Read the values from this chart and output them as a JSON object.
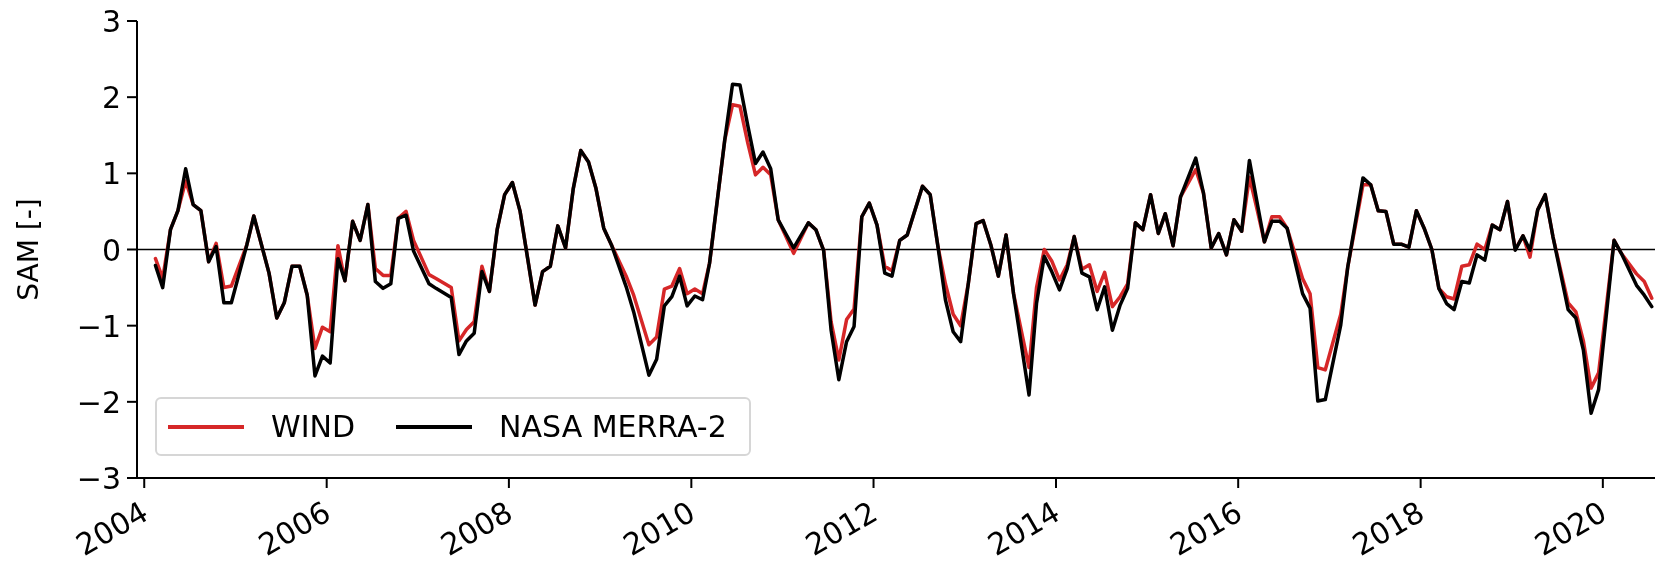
{
  "chart_data": {
    "type": "line",
    "ylabel": "SAM [-]",
    "x": [
      "2004-02-15",
      "2004-03-15",
      "2004-04-15",
      "2004-05-15",
      "2004-06-15",
      "2004-07-15",
      "2004-08-15",
      "2004-09-15",
      "2004-10-15",
      "2004-11-15",
      "2004-12-15",
      "2005-02-15",
      "2005-03-15",
      "2005-05-15",
      "2005-06-15",
      "2005-07-15",
      "2005-08-15",
      "2005-09-15",
      "2005-10-15",
      "2005-11-15",
      "2005-12-15",
      "2006-01-15",
      "2006-02-15",
      "2006-03-15",
      "2006-04-15",
      "2006-05-15",
      "2006-06-15",
      "2006-07-15",
      "2006-08-15",
      "2006-09-15",
      "2006-10-15",
      "2006-11-15",
      "2006-12-15",
      "2007-02-15",
      "2007-03-15",
      "2007-05-15",
      "2007-06-15",
      "2007-07-15",
      "2007-08-15",
      "2007-09-15",
      "2007-10-15",
      "2007-11-15",
      "2007-12-15",
      "2008-01-15",
      "2008-02-15",
      "2008-04-15",
      "2008-05-15",
      "2008-06-15",
      "2008-07-15",
      "2008-08-15",
      "2008-09-15",
      "2008-10-15",
      "2008-11-15",
      "2008-12-15",
      "2009-01-15",
      "2009-02-15",
      "2009-04-15",
      "2009-05-15",
      "2009-07-15",
      "2009-08-15",
      "2009-09-15",
      "2009-10-15",
      "2009-11-15",
      "2009-12-15",
      "2010-01-15",
      "2010-02-15",
      "2010-03-15",
      "2010-05-15",
      "2010-06-15",
      "2010-07-15",
      "2010-08-15",
      "2010-09-15",
      "2010-10-15",
      "2010-11-15",
      "2010-12-15",
      "2011-02-15",
      "2011-04-15",
      "2011-05-15",
      "2011-06-15",
      "2011-07-15",
      "2011-08-15",
      "2011-09-15",
      "2011-10-15",
      "2011-11-15",
      "2011-12-15",
      "2012-01-15",
      "2012-02-15",
      "2012-03-15",
      "2012-04-15",
      "2012-05-15",
      "2012-07-15",
      "2012-08-15",
      "2012-09-15",
      "2012-10-15",
      "2012-11-15",
      "2012-12-15",
      "2013-01-15",
      "2013-02-15",
      "2013-03-15",
      "2013-04-15",
      "2013-05-15",
      "2013-06-15",
      "2013-07-15",
      "2013-09-15",
      "2013-10-15",
      "2013-11-15",
      "2013-12-15",
      "2014-01-15",
      "2014-02-15",
      "2014-03-15",
      "2014-04-15",
      "2014-05-15",
      "2014-06-15",
      "2014-07-15",
      "2014-08-15",
      "2014-09-15",
      "2014-10-15",
      "2014-11-15",
      "2014-12-15",
      "2015-01-15",
      "2015-02-15",
      "2015-03-15",
      "2015-04-15",
      "2015-05-15",
      "2015-07-15",
      "2015-08-15",
      "2015-09-15",
      "2015-10-15",
      "2015-11-15",
      "2015-12-15",
      "2016-01-15",
      "2016-02-15",
      "2016-03-15",
      "2016-04-15",
      "2016-05-15",
      "2016-06-15",
      "2016-07-15",
      "2016-09-15",
      "2016-10-15",
      "2016-11-15",
      "2016-12-15",
      "2017-02-15",
      "2017-03-15",
      "2017-05-15",
      "2017-06-15",
      "2017-07-15",
      "2017-08-15",
      "2017-09-15",
      "2017-10-15",
      "2017-11-15",
      "2017-12-15",
      "2018-01-15",
      "2018-02-15",
      "2018-03-15",
      "2018-04-15",
      "2018-05-15",
      "2018-06-15",
      "2018-07-15",
      "2018-08-15",
      "2018-09-15",
      "2018-10-15",
      "2018-11-15",
      "2018-12-15",
      "2019-01-15",
      "2019-02-15",
      "2019-03-15",
      "2019-04-15",
      "2019-05-15",
      "2019-06-15",
      "2019-08-15",
      "2019-09-15",
      "2019-10-15",
      "2019-11-15",
      "2019-12-15",
      "2020-02-15",
      "2020-03-15",
      "2020-05-15",
      "2020-06-15",
      "2020-07-15"
    ],
    "series": [
      {
        "name": "WIND",
        "color": "#d62728",
        "values": [
          -0.12,
          -0.38,
          0.26,
          0.51,
          0.9,
          0.59,
          0.51,
          -0.16,
          0.08,
          -0.5,
          -0.48,
          0.06,
          0.44,
          -0.31,
          -0.9,
          -0.7,
          -0.22,
          -0.22,
          -0.6,
          -1.3,
          -1.02,
          -1.08,
          0.05,
          -0.41,
          0.37,
          0.12,
          0.59,
          -0.25,
          -0.34,
          -0.34,
          0.41,
          0.5,
          0.12,
          -0.33,
          -0.38,
          -0.5,
          -1.2,
          -1.05,
          -0.95,
          -0.22,
          -0.55,
          0.26,
          0.72,
          0.88,
          0.5,
          -0.73,
          -0.29,
          -0.22,
          0.31,
          0.02,
          0.8,
          1.3,
          1.15,
          0.8,
          0.28,
          0.06,
          -0.35,
          -0.6,
          -1.25,
          -1.15,
          -0.52,
          -0.48,
          -0.25,
          -0.58,
          -0.52,
          -0.58,
          -0.18,
          1.44,
          1.9,
          1.88,
          1.4,
          0.98,
          1.08,
          0.98,
          0.39,
          -0.05,
          0.35,
          0.26,
          -0.01,
          -0.95,
          -1.45,
          -0.92,
          -0.78,
          0.43,
          0.61,
          0.32,
          -0.22,
          -0.28,
          0.12,
          0.19,
          0.83,
          0.72,
          0.04,
          -0.45,
          -0.85,
          -1.0,
          -0.44,
          0.34,
          0.38,
          0.06,
          -0.35,
          0.19,
          -0.58,
          -1.55,
          -0.5,
          0.0,
          -0.15,
          -0.4,
          -0.2,
          0.17,
          -0.26,
          -0.2,
          -0.55,
          -0.3,
          -0.75,
          -0.62,
          -0.45,
          0.35,
          0.26,
          0.72,
          0.21,
          0.47,
          0.05,
          0.69,
          1.05,
          0.74,
          0.02,
          0.21,
          -0.07,
          0.39,
          0.24,
          0.95,
          0.55,
          0.1,
          0.43,
          0.43,
          0.28,
          -0.38,
          -0.58,
          -1.55,
          -1.58,
          -0.85,
          -0.23,
          0.85,
          0.85,
          0.51,
          0.5,
          0.07,
          0.07,
          0.03,
          0.51,
          0.28,
          0.0,
          -0.51,
          -0.62,
          -0.65,
          -0.22,
          -0.2,
          0.07,
          0.0,
          0.32,
          0.26,
          0.63,
          0.0,
          0.18,
          -0.1,
          0.52,
          0.72,
          0.17,
          -0.7,
          -0.82,
          -1.2,
          -1.82,
          -1.62,
          0.12,
          -0.05,
          -0.32,
          -0.42,
          -0.64
        ]
      },
      {
        "name": "NASA MERRA-2",
        "color": "#000000",
        "values": [
          -0.21,
          -0.5,
          0.26,
          0.51,
          1.06,
          0.59,
          0.51,
          -0.16,
          0.04,
          -0.7,
          -0.7,
          0.06,
          0.44,
          -0.31,
          -0.9,
          -0.7,
          -0.22,
          -0.22,
          -0.6,
          -1.66,
          -1.4,
          -1.49,
          -0.12,
          -0.41,
          0.37,
          0.12,
          0.59,
          -0.42,
          -0.51,
          -0.45,
          0.41,
          0.45,
          -0.02,
          -0.45,
          -0.51,
          -0.63,
          -1.38,
          -1.2,
          -1.1,
          -0.29,
          -0.55,
          0.26,
          0.72,
          0.88,
          0.5,
          -0.73,
          -0.29,
          -0.22,
          0.31,
          0.02,
          0.8,
          1.3,
          1.15,
          0.8,
          0.28,
          0.06,
          -0.49,
          -0.82,
          -1.65,
          -1.44,
          -0.74,
          -0.62,
          -0.35,
          -0.74,
          -0.61,
          -0.66,
          -0.18,
          1.44,
          2.17,
          2.16,
          1.63,
          1.13,
          1.28,
          1.06,
          0.39,
          0.02,
          0.35,
          0.26,
          -0.01,
          -1.06,
          -1.71,
          -1.21,
          -1.01,
          0.43,
          0.61,
          0.32,
          -0.31,
          -0.35,
          0.12,
          0.19,
          0.83,
          0.72,
          0.04,
          -0.66,
          -1.08,
          -1.21,
          -0.44,
          0.34,
          0.38,
          0.06,
          -0.35,
          0.19,
          -0.58,
          -1.91,
          -0.71,
          -0.09,
          -0.29,
          -0.53,
          -0.25,
          0.17,
          -0.31,
          -0.36,
          -0.79,
          -0.49,
          -1.06,
          -0.73,
          -0.51,
          0.35,
          0.26,
          0.72,
          0.21,
          0.47,
          0.05,
          0.69,
          1.2,
          0.74,
          0.02,
          0.21,
          -0.07,
          0.39,
          0.24,
          1.17,
          0.65,
          0.1,
          0.37,
          0.37,
          0.28,
          -0.58,
          -0.77,
          -1.99,
          -1.97,
          -0.99,
          -0.23,
          0.94,
          0.85,
          0.51,
          0.5,
          0.07,
          0.07,
          0.03,
          0.51,
          0.28,
          0.0,
          -0.51,
          -0.71,
          -0.79,
          -0.42,
          -0.44,
          -0.07,
          -0.14,
          0.32,
          0.26,
          0.63,
          -0.01,
          0.18,
          -0.01,
          0.52,
          0.72,
          0.17,
          -0.79,
          -0.9,
          -1.32,
          -2.15,
          -1.84,
          0.12,
          -0.05,
          -0.47,
          -0.6,
          -0.75
        ]
      }
    ],
    "xlim": [
      "2003-12-03",
      "2020-07-28"
    ],
    "xticks": [
      "2004",
      "2006",
      "2008",
      "2010",
      "2012",
      "2014",
      "2016",
      "2018",
      "2020"
    ],
    "ylim": [
      -3,
      3
    ],
    "yticks": [
      {
        "value": -3,
        "label": "−3"
      },
      {
        "value": -2,
        "label": "−2"
      },
      {
        "value": -1,
        "label": "−1"
      },
      0,
      1,
      2,
      3
    ],
    "ref_lines": [
      {
        "axis": "y",
        "value": 0,
        "color": "#000000"
      }
    ],
    "legend": "lower left",
    "marker": "none",
    "line_style": "solid"
  }
}
